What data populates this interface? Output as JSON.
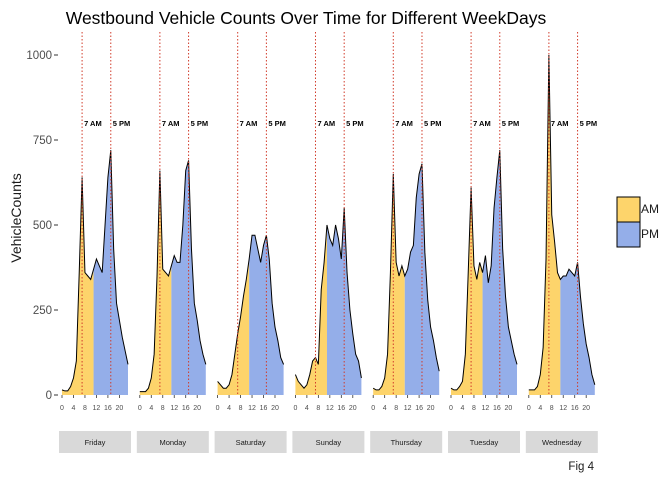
{
  "footer_note": "Fig 4",
  "colors": {
    "am": "#FDD46B",
    "pm": "#94AEE9",
    "marker_line": "#D13B2A",
    "strip": "#D9D9D9"
  },
  "chart_data": {
    "type": "area",
    "title": "Westbound Vehicle Counts Over Time for Different WeekDays",
    "xlabel": "",
    "ylabel": "VehicleCounts",
    "ylim": [
      0,
      1050
    ],
    "yticks": [
      0,
      250,
      500,
      750,
      1000
    ],
    "xticks": [
      0,
      4,
      8,
      12,
      16,
      20
    ],
    "xlim": [
      0,
      23
    ],
    "grid": false,
    "legend": {
      "position": "right",
      "entries": [
        {
          "name": "AM",
          "color": "#FDD46B"
        },
        {
          "name": "PM",
          "color": "#94AEE9"
        }
      ]
    },
    "markers": [
      {
        "x": 7,
        "label": "7 AM"
      },
      {
        "x": 17,
        "label": "5 PM"
      }
    ],
    "marker_label_y": 800,
    "split_hour": 11,
    "x": [
      0,
      1,
      2,
      3,
      4,
      5,
      6,
      7,
      8,
      9,
      10,
      11,
      12,
      13,
      14,
      15,
      16,
      17,
      18,
      19,
      20,
      21,
      22,
      23
    ],
    "series": [
      {
        "facet": "Friday",
        "values": [
          15,
          12,
          12,
          25,
          50,
          100,
          360,
          640,
          360,
          350,
          340,
          370,
          400,
          380,
          360,
          500,
          640,
          720,
          430,
          270,
          220,
          170,
          130,
          90
        ]
      },
      {
        "facet": "Monday",
        "values": [
          10,
          10,
          10,
          20,
          50,
          120,
          350,
          660,
          370,
          360,
          350,
          380,
          410,
          390,
          390,
          500,
          660,
          690,
          430,
          270,
          220,
          160,
          120,
          90
        ]
      },
      {
        "facet": "Saturday",
        "values": [
          40,
          30,
          20,
          20,
          30,
          60,
          120,
          180,
          230,
          290,
          340,
          400,
          470,
          470,
          430,
          390,
          440,
          470,
          400,
          270,
          200,
          160,
          110,
          90
        ]
      },
      {
        "facet": "Sunday",
        "values": [
          60,
          40,
          30,
          20,
          30,
          60,
          100,
          110,
          90,
          310,
          390,
          500,
          460,
          440,
          500,
          460,
          400,
          550,
          360,
          250,
          180,
          120,
          100,
          50
        ]
      },
      {
        "facet": "Thursday",
        "values": [
          20,
          15,
          15,
          25,
          50,
          120,
          360,
          650,
          390,
          350,
          380,
          350,
          370,
          420,
          440,
          580,
          650,
          680,
          420,
          280,
          200,
          160,
          110,
          70
        ]
      },
      {
        "facet": "Tuesday",
        "values": [
          20,
          15,
          15,
          25,
          40,
          120,
          360,
          610,
          380,
          340,
          390,
          360,
          410,
          330,
          380,
          550,
          640,
          720,
          430,
          290,
          200,
          160,
          120,
          90
        ]
      },
      {
        "facet": "Wednesday",
        "values": [
          15,
          15,
          15,
          25,
          60,
          140,
          400,
          1000,
          530,
          450,
          360,
          340,
          350,
          350,
          370,
          360,
          350,
          390,
          290,
          210,
          150,
          110,
          60,
          30
        ]
      }
    ]
  }
}
